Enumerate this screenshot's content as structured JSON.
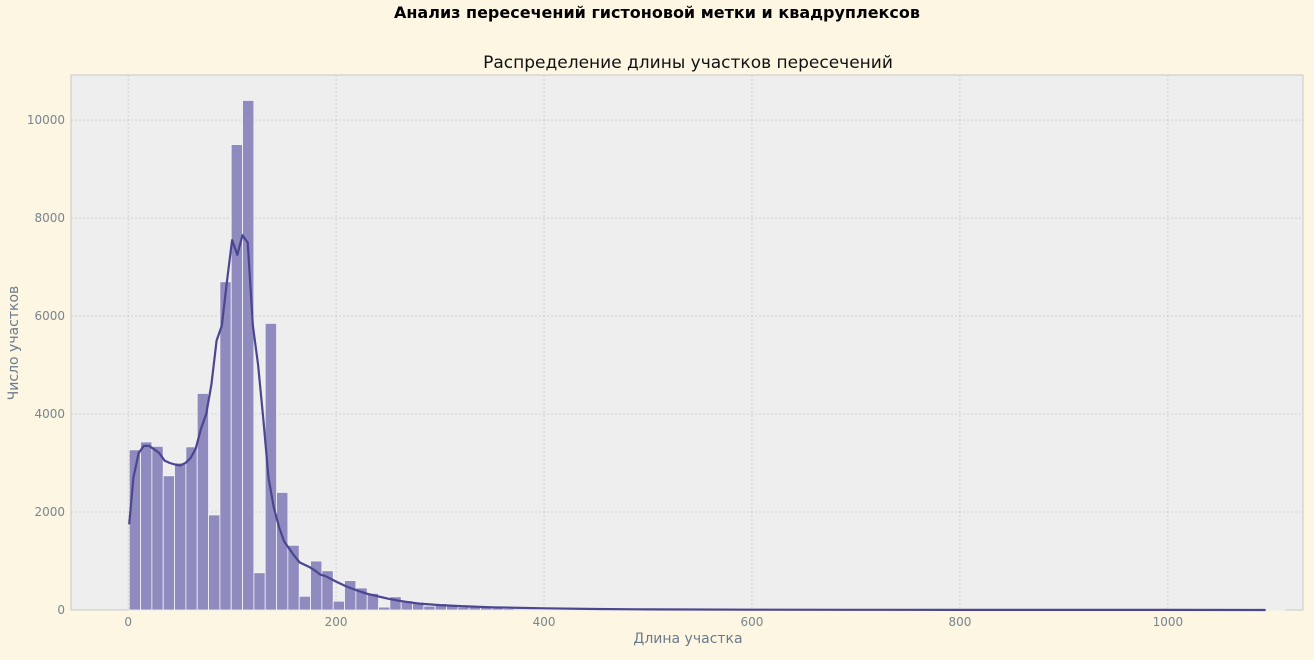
{
  "suptitle": "Анализ пересечений гистоновой метки и квадруплексов",
  "chart_data": {
    "type": "bar",
    "title": "Распределение длины участков пересечений",
    "xlabel": "Длина участка",
    "ylabel": "Число участков",
    "xlim": [
      -55,
      1130
    ],
    "ylim": [
      0,
      10920
    ],
    "xticks": [
      0,
      200,
      400,
      600,
      800,
      1000
    ],
    "yticks": [
      0,
      2000,
      4000,
      6000,
      8000,
      10000
    ],
    "grid": true,
    "bin_width": 10.9,
    "bins_start": 1,
    "values": [
      3270,
      3430,
      3340,
      2740,
      3000,
      3330,
      4420,
      1940,
      6700,
      9500,
      10400,
      760,
      5850,
      2400,
      1320,
      280,
      1000,
      800,
      180,
      600,
      450,
      340,
      60,
      270,
      190,
      160,
      80,
      130,
      110,
      60,
      70,
      50,
      40,
      30,
      20,
      20,
      15,
      15,
      12,
      10,
      10,
      8,
      8,
      6,
      6,
      5,
      5,
      4,
      4,
      4,
      3,
      3,
      3,
      3,
      2,
      2,
      2,
      2,
      2,
      2,
      2,
      2,
      1,
      1,
      1,
      1,
      1,
      1,
      1,
      1,
      1,
      1,
      1,
      1,
      1,
      1,
      1,
      1,
      1,
      1,
      1,
      1,
      1,
      1,
      1,
      1,
      1,
      1,
      1,
      1,
      1,
      1,
      1,
      1,
      1,
      1,
      1,
      1,
      1,
      1,
      1,
      1
    ],
    "kde": {
      "x": [
        1,
        5,
        10,
        15,
        20,
        25,
        30,
        35,
        40,
        45,
        50,
        55,
        60,
        65,
        70,
        75,
        80,
        85,
        90,
        95,
        100,
        105,
        110,
        115,
        120,
        125,
        130,
        135,
        140,
        145,
        150,
        155,
        160,
        165,
        170,
        175,
        180,
        185,
        190,
        200,
        210,
        220,
        230,
        240,
        250,
        260,
        270,
        280,
        300,
        320,
        350,
        400,
        450,
        500,
        600,
        700,
        800,
        900,
        1000,
        1094
      ],
      "y": [
        1750,
        2700,
        3200,
        3350,
        3350,
        3280,
        3200,
        3050,
        3000,
        2970,
        2950,
        3000,
        3100,
        3300,
        3700,
        4000,
        4600,
        5500,
        5800,
        6700,
        7550,
        7250,
        7650,
        7500,
        5800,
        5000,
        3900,
        2700,
        2100,
        1700,
        1400,
        1250,
        1100,
        970,
        920,
        870,
        800,
        720,
        690,
        580,
        480,
        400,
        330,
        280,
        230,
        190,
        160,
        130,
        100,
        80,
        55,
        35,
        20,
        12,
        6,
        4,
        3,
        2,
        2,
        1
      ]
    },
    "colors": {
      "bar_fill": "#8f8bbe",
      "bar_edge": "#f4f3f8",
      "line": "#4a4690",
      "plot_bg": "#eeeeee",
      "grid": "#c9c9c9",
      "frame": "#c8c8c8"
    }
  }
}
